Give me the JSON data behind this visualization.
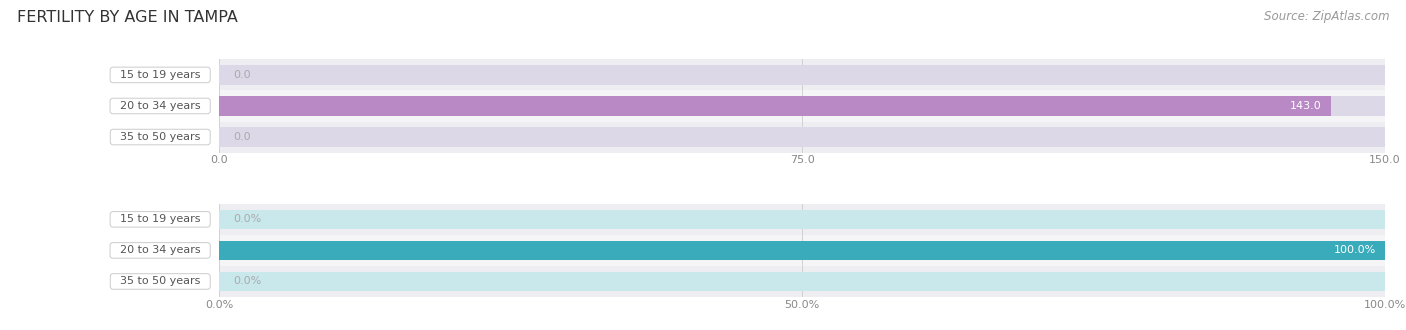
{
  "title": "FERTILITY BY AGE IN TAMPA",
  "source": "Source: ZipAtlas.com",
  "top_chart": {
    "categories": [
      "15 to 19 years",
      "20 to 34 years",
      "35 to 50 years"
    ],
    "values": [
      0.0,
      143.0,
      0.0
    ],
    "bar_color": "#b989c5",
    "bg_color": "#ddd8e8",
    "xlim": [
      0,
      150.0
    ],
    "xticks": [
      0.0,
      75.0,
      150.0
    ],
    "xtick_labels": [
      "0.0",
      "75.0",
      "150.0"
    ],
    "label_suffix": ""
  },
  "bottom_chart": {
    "categories": [
      "15 to 19 years",
      "20 to 34 years",
      "35 to 50 years"
    ],
    "values": [
      0.0,
      100.0,
      0.0
    ],
    "bar_color": "#3aabba",
    "bg_color": "#c8e8ec",
    "xlim": [
      0,
      100.0
    ],
    "xticks": [
      0.0,
      50.0,
      100.0
    ],
    "xtick_labels": [
      "0.0%",
      "50.0%",
      "100.0%"
    ],
    "label_suffix": "%"
  },
  "label_text_color": "#555555",
  "title_color": "#333333",
  "source_color": "#999999",
  "bar_height": 0.62,
  "row_bg_even": "#ededf2",
  "row_bg_odd": "#f5f5f8",
  "value_label_color_inside": "#ffffff",
  "value_label_color_outside": "#aaaaaa"
}
